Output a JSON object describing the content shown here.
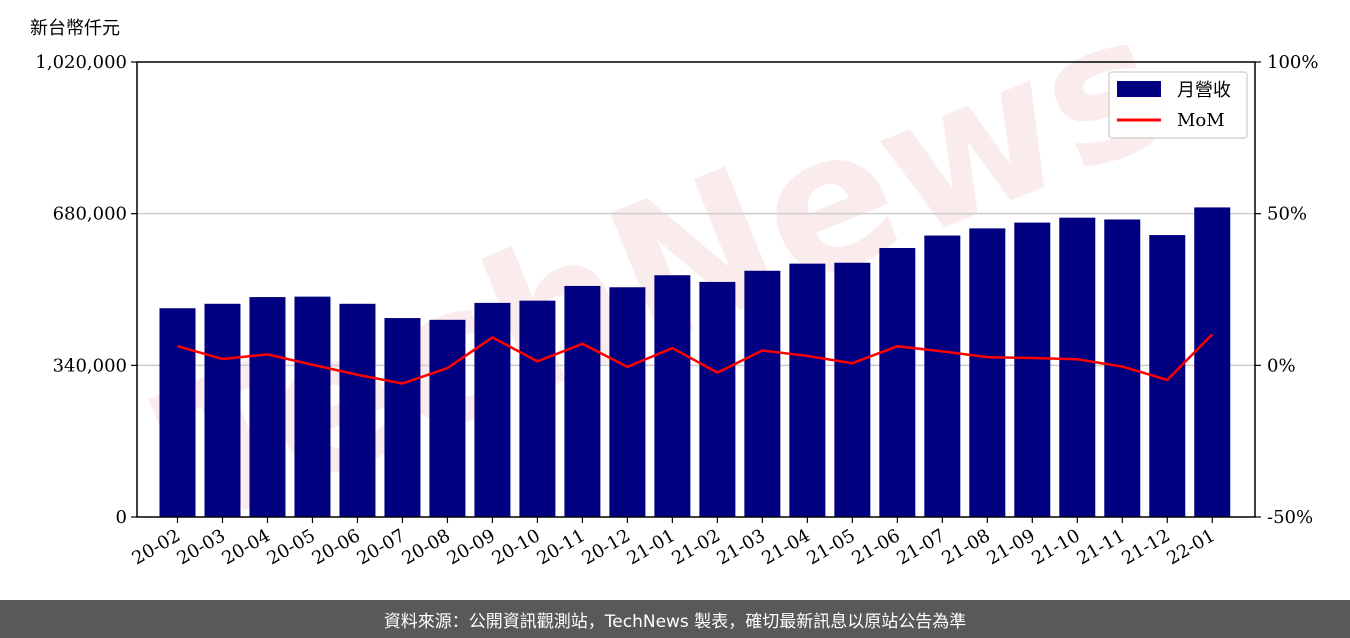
{
  "watermark": "TechNews",
  "footer": {
    "text": "資料來源：公開資訊觀測站，TechNews 製表，確切最新訊息以原站公告為準"
  },
  "chart_data": {
    "type": "bar",
    "categories": [
      "20-02",
      "20-03",
      "20-04",
      "20-05",
      "20-06",
      "20-07",
      "20-08",
      "20-09",
      "20-10",
      "20-11",
      "20-12",
      "21-01",
      "21-02",
      "21-03",
      "21-04",
      "21-05",
      "21-06",
      "21-07",
      "21-08",
      "21-09",
      "21-10",
      "21-11",
      "21-12",
      "22-01"
    ],
    "y_unit_label": "新台幣仟元",
    "ylim": [
      0,
      1020000
    ],
    "yticks": [
      0,
      340000,
      680000,
      1020000
    ],
    "ytick_labels": [
      "0",
      "340,000",
      "680,000",
      "1,020,000"
    ],
    "y2lim": [
      -50,
      100
    ],
    "y2ticks": [
      -50,
      0,
      50,
      100
    ],
    "y2tick_labels": [
      "-50%",
      "0%",
      "50%",
      "100%"
    ],
    "grid": "horizontal",
    "legend_position": "top-right",
    "series": [
      {
        "name": "月營收",
        "kind": "bar",
        "axis": "left",
        "color": "#000080",
        "values": [
          468000,
          478000,
          493000,
          494000,
          478000,
          446000,
          442000,
          480000,
          485000,
          518000,
          515000,
          542000,
          527000,
          552000,
          568000,
          570000,
          603000,
          631000,
          647000,
          660000,
          671000,
          667000,
          632000,
          694000
        ]
      },
      {
        "name": "MoM",
        "kind": "line",
        "axis": "right",
        "color": "#ff0000",
        "values": [
          6.3,
          2.1,
          3.6,
          0.2,
          -3.1,
          -6.0,
          -0.9,
          9.2,
          1.3,
          7.1,
          -0.5,
          5.7,
          -2.4,
          4.9,
          3.1,
          0.7,
          6.3,
          4.6,
          2.7,
          2.4,
          2.0,
          -0.4,
          -4.8,
          10.2
        ]
      }
    ]
  }
}
